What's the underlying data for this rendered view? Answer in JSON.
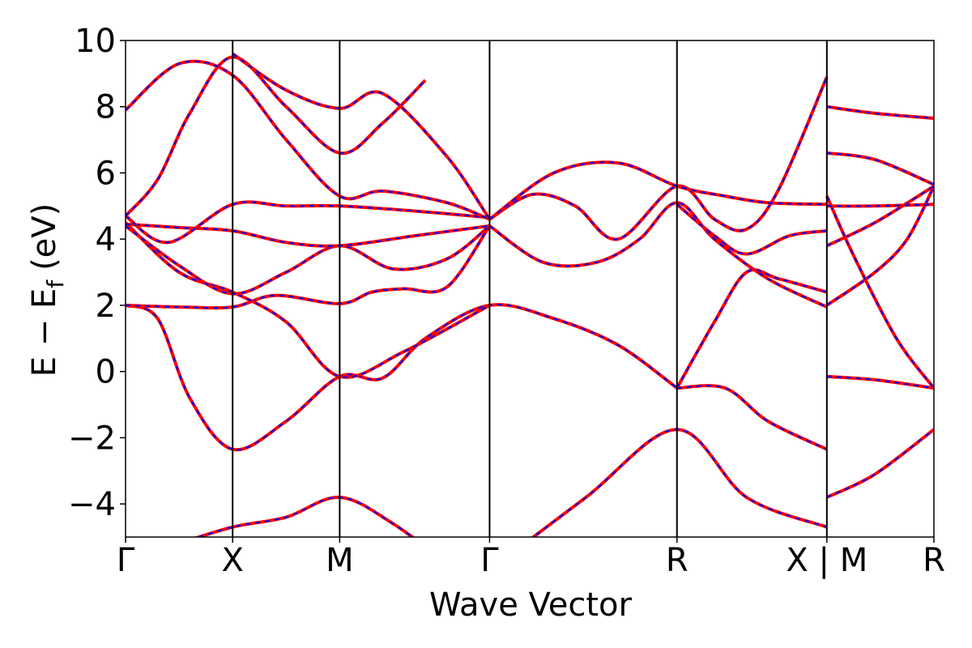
{
  "chart_data": {
    "type": "line",
    "title": "",
    "xlabel": "Wave Vector",
    "ylabel": "E  −  E",
    "ylabel_subscript": "f",
    "ylabel_unit": "(eV)",
    "ylim": [
      -5,
      10
    ],
    "yticks": [
      -4,
      -2,
      0,
      2,
      4,
      6,
      8,
      10
    ],
    "ytick_labels": [
      "−4",
      "−2",
      "0",
      "2",
      "4",
      "6",
      "8",
      "10"
    ],
    "xlim": [
      0,
      7.5
    ],
    "high_symmetry_points": [
      {
        "x": 0,
        "label": "Γ"
      },
      {
        "x": 1.0,
        "label": "X"
      },
      {
        "x": 2.0,
        "label": "M"
      },
      {
        "x": 3.4,
        "label": "Γ"
      },
      {
        "x": 5.15,
        "label": "R"
      },
      {
        "x": 6.55,
        "label": "X | M"
      },
      {
        "x": 7.55,
        "label": "R"
      }
    ],
    "grid": false,
    "legend": "none",
    "colors": {
      "series_a": "#ff0000",
      "series_b": "#0000ff",
      "kpath_lines": "#000000"
    },
    "series": [
      {
        "values": [
          [
            0,
            -5.8
          ],
          [
            0.5,
            -5.2
          ],
          [
            1.0,
            -4.7
          ],
          [
            1.5,
            -4.4
          ],
          [
            2.0,
            -3.8
          ],
          [
            2.5,
            -4.6
          ],
          [
            3.0,
            -5.8
          ]
        ]
      },
      {
        "values": [
          [
            0,
            2.0
          ],
          [
            0.3,
            1.6
          ],
          [
            0.6,
            -0.8
          ],
          [
            1.0,
            -2.35
          ],
          [
            1.5,
            -1.5
          ],
          [
            2.0,
            -0.15
          ],
          [
            2.4,
            -0.2
          ],
          [
            2.8,
            1.0
          ],
          [
            3.4,
            2.0
          ],
          [
            4.0,
            1.6
          ],
          [
            4.6,
            0.8
          ],
          [
            5.15,
            -0.5
          ]
        ]
      },
      {
        "values": [
          [
            0,
            2.0
          ],
          [
            0.5,
            1.95
          ],
          [
            1.0,
            1.95
          ],
          [
            1.4,
            2.3
          ],
          [
            2.0,
            2.05
          ],
          [
            2.3,
            2.4
          ],
          [
            2.6,
            2.5
          ],
          [
            3.0,
            2.55
          ],
          [
            3.4,
            4.4
          ]
        ]
      },
      {
        "values": [
          [
            0,
            4.5
          ],
          [
            0.5,
            3.0
          ],
          [
            1.0,
            2.4
          ],
          [
            1.5,
            1.5
          ],
          [
            2.0,
            -0.15
          ],
          [
            2.6,
            0.6
          ],
          [
            3.4,
            2.0
          ]
        ]
      },
      {
        "values": [
          [
            0,
            4.4
          ],
          [
            0.5,
            3.2
          ],
          [
            1.0,
            2.35
          ],
          [
            1.5,
            3.0
          ],
          [
            2.0,
            3.8
          ],
          [
            2.5,
            3.1
          ],
          [
            3.0,
            3.4
          ],
          [
            3.4,
            4.4
          ]
        ]
      },
      {
        "values": [
          [
            0,
            4.45
          ],
          [
            0.5,
            4.35
          ],
          [
            1.0,
            4.25
          ],
          [
            1.5,
            3.9
          ],
          [
            2.0,
            3.8
          ],
          [
            2.7,
            4.1
          ],
          [
            3.4,
            4.4
          ]
        ]
      },
      {
        "values": [
          [
            0,
            4.7
          ],
          [
            0.4,
            3.9
          ],
          [
            1.0,
            5.05
          ],
          [
            1.5,
            5.0
          ],
          [
            2.0,
            5.0
          ],
          [
            2.7,
            4.85
          ],
          [
            3.4,
            4.65
          ]
        ]
      },
      {
        "values": [
          [
            0,
            4.7
          ],
          [
            0.3,
            5.8
          ],
          [
            0.6,
            7.8
          ],
          [
            1.0,
            9.5
          ],
          [
            1.5,
            8.0
          ],
          [
            2.0,
            6.6
          ],
          [
            2.4,
            7.5
          ],
          [
            2.8,
            8.8
          ]
        ]
      },
      {
        "values": [
          [
            0,
            7.9
          ],
          [
            0.5,
            9.3
          ],
          [
            1.0,
            8.95
          ],
          [
            1.5,
            7.0
          ],
          [
            2.0,
            5.3
          ],
          [
            2.4,
            5.45
          ],
          [
            3.0,
            5.1
          ],
          [
            3.4,
            4.6
          ]
        ]
      },
      {
        "values": [
          [
            1.0,
            9.6
          ],
          [
            1.5,
            8.5
          ],
          [
            2.0,
            7.95
          ],
          [
            2.4,
            8.4
          ],
          [
            3.0,
            6.5
          ],
          [
            3.4,
            4.6
          ]
        ]
      },
      {
        "values": [
          [
            3.4,
            4.4
          ],
          [
            3.9,
            3.3
          ],
          [
            4.4,
            3.3
          ],
          [
            4.8,
            4.0
          ],
          [
            5.15,
            5.1
          ],
          [
            5.5,
            4.0
          ],
          [
            6.0,
            2.8
          ],
          [
            6.55,
            1.95
          ]
        ]
      },
      {
        "values": [
          [
            3.4,
            4.6
          ],
          [
            3.8,
            5.35
          ],
          [
            4.2,
            5.0
          ],
          [
            4.6,
            4.0
          ],
          [
            5.15,
            5.6
          ],
          [
            5.5,
            4.6
          ],
          [
            5.8,
            4.3
          ],
          [
            6.1,
            5.5
          ],
          [
            6.55,
            8.9
          ]
        ]
      },
      {
        "values": [
          [
            3.4,
            4.6
          ],
          [
            4.0,
            6.0
          ],
          [
            4.6,
            6.3
          ],
          [
            5.15,
            5.6
          ],
          [
            5.6,
            5.3
          ],
          [
            6.0,
            5.1
          ],
          [
            6.55,
            5.05
          ]
        ]
      },
      {
        "values": [
          [
            5.15,
            -0.5
          ],
          [
            5.5,
            1.5
          ],
          [
            5.8,
            3.0
          ],
          [
            6.1,
            2.8
          ],
          [
            6.55,
            2.4
          ]
        ]
      },
      {
        "values": [
          [
            5.15,
            -0.5
          ],
          [
            5.6,
            -0.5
          ],
          [
            6.0,
            -1.5
          ],
          [
            6.55,
            -2.35
          ]
        ]
      },
      {
        "values": [
          [
            3.4,
            -6.0
          ],
          [
            4.3,
            -3.8
          ],
          [
            5.15,
            -1.75
          ],
          [
            5.8,
            -3.8
          ],
          [
            6.55,
            -4.7
          ]
        ]
      },
      {
        "values": [
          [
            5.15,
            5.05
          ],
          [
            5.5,
            4.1
          ],
          [
            5.8,
            3.55
          ],
          [
            6.2,
            4.1
          ],
          [
            6.55,
            4.25
          ]
        ]
      },
      {
        "values": [
          [
            6.55,
            -0.15
          ],
          [
            7.0,
            -0.25
          ],
          [
            7.55,
            -0.5
          ]
        ]
      },
      {
        "values": [
          [
            6.55,
            -3.8
          ],
          [
            7.0,
            -3.1
          ],
          [
            7.55,
            -1.75
          ]
        ]
      },
      {
        "values": [
          [
            6.55,
            2.0
          ],
          [
            7.0,
            3.0
          ],
          [
            7.3,
            4.0
          ],
          [
            7.55,
            5.6
          ]
        ]
      },
      {
        "values": [
          [
            6.55,
            3.8
          ],
          [
            7.0,
            4.5
          ],
          [
            7.55,
            5.6
          ]
        ]
      },
      {
        "values": [
          [
            6.55,
            5.3
          ],
          [
            6.8,
            3.5
          ],
          [
            7.2,
            1.0
          ],
          [
            7.55,
            -0.5
          ]
        ]
      },
      {
        "values": [
          [
            6.55,
            5.0
          ],
          [
            7.0,
            5.0
          ],
          [
            7.55,
            5.05
          ]
        ]
      },
      {
        "values": [
          [
            6.55,
            6.6
          ],
          [
            7.0,
            6.4
          ],
          [
            7.55,
            5.65
          ]
        ]
      },
      {
        "values": [
          [
            6.55,
            8.0
          ],
          [
            7.0,
            7.8
          ],
          [
            7.55,
            7.65
          ]
        ]
      }
    ]
  }
}
